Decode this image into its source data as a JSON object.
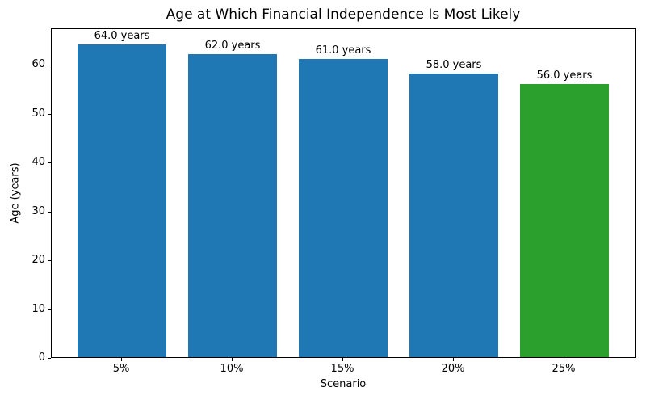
{
  "chart_data": {
    "type": "bar",
    "title": "Age at Which Financial Independence Is Most Likely",
    "xlabel": "Scenario",
    "ylabel": "Age (years)",
    "categories": [
      "5%",
      "10%",
      "15%",
      "20%",
      "25%"
    ],
    "values": [
      64.0,
      62.0,
      61.0,
      58.0,
      56.0
    ],
    "bar_labels": [
      "64.0 years",
      "62.0 years",
      "61.0 years",
      "58.0 years",
      "56.0 years"
    ],
    "bar_colors": [
      "#1f77b4",
      "#1f77b4",
      "#1f77b4",
      "#1f77b4",
      "#2ca02c"
    ],
    "ylim": [
      0,
      67.5
    ],
    "yticks": [
      0,
      10,
      20,
      30,
      40,
      50,
      60
    ],
    "grid": false,
    "legend": "none",
    "background": "#ffffff",
    "spine_color": "#000000"
  }
}
